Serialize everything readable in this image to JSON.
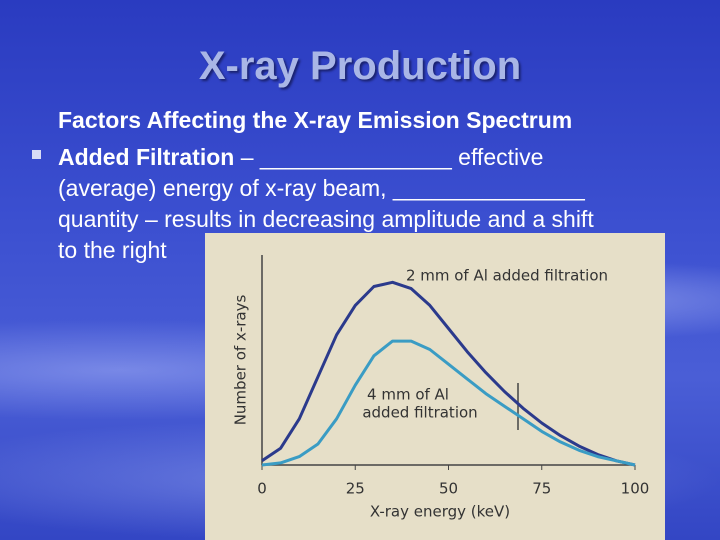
{
  "title": "X-ray Production",
  "subtitle": "Factors Affecting the X-ray Emission Spectrum",
  "bullet": {
    "label": "Added Filtration",
    "lines": [
      "– _______________ effective",
      "(average) energy of x-ray beam, _______________",
      "quantity – results in decreasing amplitude and a shift",
      "to the right"
    ]
  },
  "chart_data": {
    "type": "line",
    "x_label": "X-ray energy (keV)",
    "y_label": "Number of x-rays",
    "annotations": [
      "2 mm of Al added filtration",
      "4 mm of Al",
      "added filtration"
    ],
    "x": [
      0,
      5,
      10,
      15,
      20,
      25,
      30,
      35,
      40,
      45,
      50,
      55,
      60,
      65,
      70,
      75,
      80,
      85,
      90,
      95,
      100
    ],
    "series": [
      {
        "color": "#2b3a8c",
        "values": [
          2,
          8,
          22,
          42,
          62,
          76,
          85,
          87,
          84,
          76,
          65,
          54,
          44,
          35,
          27,
          20,
          14,
          9,
          5,
          2,
          0
        ]
      },
      {
        "color": "#3a9cc4",
        "values": [
          0,
          1,
          4,
          10,
          22,
          38,
          52,
          59,
          59,
          55,
          48,
          41,
          34,
          28,
          22,
          16,
          11,
          7,
          4,
          2,
          0
        ]
      }
    ],
    "xlim": [
      0,
      100
    ],
    "xticks": [
      0,
      25,
      50,
      75,
      100
    ],
    "ylim": [
      0,
      100
    ]
  }
}
